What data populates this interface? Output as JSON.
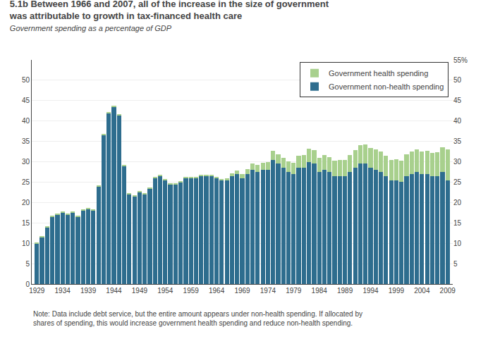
{
  "chart_data": {
    "type": "bar",
    "stacked": true,
    "title": "5.1b Between 1966 and 2007, all of the increase in the size of government\nwas attributable to growth in tax-financed health care",
    "subtitle": "Government spending as a percentage of GDP",
    "note": "Note: Data include debt service, but the entire amount appears under non-health spending. If allocated by shares of spending, this would increase government health spending and reduce non-health spending.",
    "x": [
      1929,
      1930,
      1931,
      1932,
      1933,
      1934,
      1935,
      1936,
      1937,
      1938,
      1939,
      1940,
      1941,
      1942,
      1943,
      1944,
      1945,
      1946,
      1947,
      1948,
      1949,
      1950,
      1951,
      1952,
      1953,
      1954,
      1955,
      1956,
      1957,
      1958,
      1959,
      1960,
      1961,
      1962,
      1963,
      1964,
      1965,
      1966,
      1967,
      1968,
      1969,
      1970,
      1971,
      1972,
      1973,
      1974,
      1975,
      1976,
      1977,
      1978,
      1979,
      1980,
      1981,
      1982,
      1983,
      1984,
      1985,
      1986,
      1987,
      1988,
      1989,
      1990,
      1991,
      1992,
      1993,
      1994,
      1995,
      1996,
      1997,
      1998,
      1999,
      2000,
      2001,
      2002,
      2003,
      2004,
      2005,
      2006,
      2007,
      2008,
      2009
    ],
    "series": [
      {
        "name": "Government non-health spending",
        "color": "#2e6d8e",
        "values": [
          10.0,
          11.5,
          14.0,
          16.5,
          17.0,
          17.5,
          17.0,
          17.5,
          16.5,
          18.0,
          18.5,
          18.0,
          24.0,
          36.5,
          42.0,
          43.5,
          41.5,
          29.0,
          22.0,
          21.5,
          22.5,
          22.0,
          23.5,
          26.0,
          26.5,
          25.5,
          24.5,
          24.5,
          25.0,
          26.0,
          26.0,
          26.0,
          26.5,
          26.5,
          26.5,
          26.0,
          25.5,
          25.5,
          26.5,
          27.0,
          26.0,
          27.0,
          28.0,
          27.5,
          28.0,
          28.0,
          30.5,
          29.5,
          28.5,
          27.5,
          27.0,
          28.5,
          28.5,
          30.0,
          29.5,
          27.5,
          28.0,
          27.5,
          26.5,
          26.5,
          26.5,
          27.5,
          28.5,
          29.5,
          29.5,
          28.5,
          28.0,
          27.5,
          26.5,
          25.5,
          25.5,
          25.0,
          26.5,
          27.0,
          27.5,
          27.0,
          27.0,
          26.5,
          26.5,
          27.5,
          25.5
        ]
      },
      {
        "name": "Government health spending",
        "color": "#a8d08d",
        "values": [
          0.2,
          0.2,
          0.2,
          0.2,
          0.2,
          0.2,
          0.2,
          0.2,
          0.2,
          0.2,
          0.2,
          0.2,
          0.2,
          0.2,
          0.2,
          0.2,
          0.2,
          0.2,
          0.2,
          0.2,
          0.2,
          0.2,
          0.2,
          0.2,
          0.2,
          0.2,
          0.2,
          0.2,
          0.2,
          0.2,
          0.2,
          0.2,
          0.2,
          0.2,
          0.2,
          0.2,
          0.2,
          0.5,
          0.7,
          0.8,
          0.9,
          1.2,
          1.5,
          1.7,
          1.8,
          1.9,
          2.2,
          2.4,
          2.5,
          2.6,
          2.7,
          2.9,
          3.1,
          3.2,
          3.3,
          3.4,
          3.6,
          3.7,
          3.8,
          3.9,
          4.0,
          4.2,
          4.4,
          4.6,
          4.7,
          4.8,
          5.0,
          5.0,
          5.0,
          5.0,
          5.1,
          5.2,
          5.4,
          5.5,
          5.6,
          5.6,
          5.7,
          5.7,
          5.8,
          6.0,
          7.5
        ]
      }
    ],
    "xlim": [
      1928,
      2010
    ],
    "xticks": [
      1929,
      1934,
      1939,
      1944,
      1949,
      1954,
      1959,
      1964,
      1969,
      1974,
      1979,
      1984,
      1989,
      1994,
      1999,
      2004,
      2009
    ],
    "ylim": [
      0,
      55
    ],
    "yticks": [
      0,
      5,
      10,
      15,
      20,
      25,
      30,
      35,
      40,
      45,
      50
    ],
    "y2lim": [
      0,
      55
    ],
    "y2ticks": [
      5,
      10,
      15,
      20,
      25,
      30,
      35,
      40,
      45,
      50,
      {
        "value": 55,
        "label": "55%"
      }
    ],
    "grid": true,
    "legend": "upper right"
  }
}
